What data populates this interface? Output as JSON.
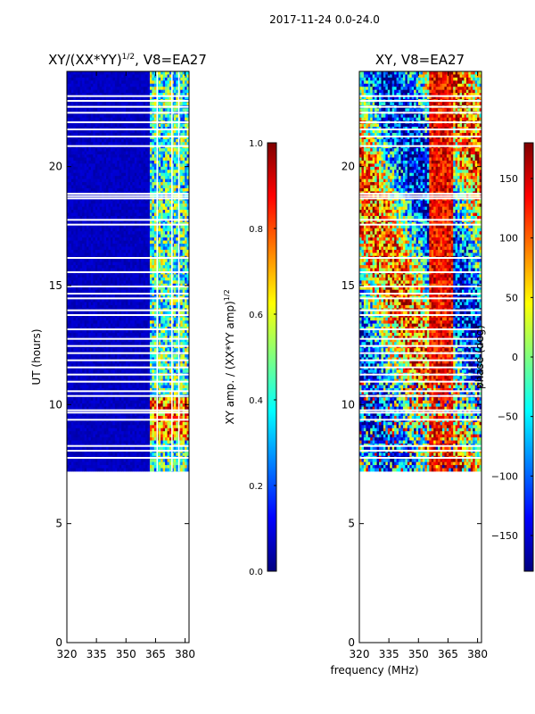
{
  "suptitle": "2017-11-24 0.0-24.0",
  "colors": {
    "axis": "#000000",
    "gap": "#ffffff",
    "jet": [
      "#00007f",
      "#0000ff",
      "#007fff",
      "#00ffff",
      "#7fff7f",
      "#ffff00",
      "#ff7f00",
      "#ff0000",
      "#7f0000"
    ]
  },
  "chart_data": [
    {
      "type": "heatmap",
      "title_pre": "XY/(XX*YY)",
      "title_sup": "1/2",
      "title_post": ", V8=EA27",
      "xlabel": "",
      "ylabel": "UT (hours)",
      "xlim": [
        320,
        382
      ],
      "ylim": [
        0,
        24
      ],
      "xticks": [
        320,
        335,
        350,
        365,
        380
      ],
      "yticks": [
        0,
        5,
        10,
        15,
        20
      ],
      "data_start_ut": 7.2,
      "data_end_ut": 24,
      "kind": "amplitude",
      "colorbar": {
        "label_pre": "XY amp. / (XX*YY amp)",
        "label_sup": "1/2",
        "range": [
          0.0,
          1.0
        ],
        "ticks": [
          "0.0",
          "0.2",
          "0.4",
          "0.6",
          "0.8",
          "1.0"
        ]
      }
    },
    {
      "type": "heatmap",
      "title_pre": "XY, V8=EA27",
      "title_sup": "",
      "title_post": "",
      "xlabel": "frequency (MHz)",
      "ylabel": "",
      "xlim": [
        320,
        382
      ],
      "ylim": [
        0,
        24
      ],
      "xticks": [
        320,
        335,
        350,
        365,
        380
      ],
      "yticks": [
        0,
        5,
        10,
        15,
        20
      ],
      "data_start_ut": 7.2,
      "data_end_ut": 24,
      "kind": "phase",
      "colorbar": {
        "label_pre": "phase (deg)",
        "label_sup": "",
        "range": [
          -180,
          180
        ],
        "ticks": [
          "−150",
          "−100",
          "−50",
          "0",
          "50",
          "100",
          "150"
        ]
      }
    }
  ]
}
